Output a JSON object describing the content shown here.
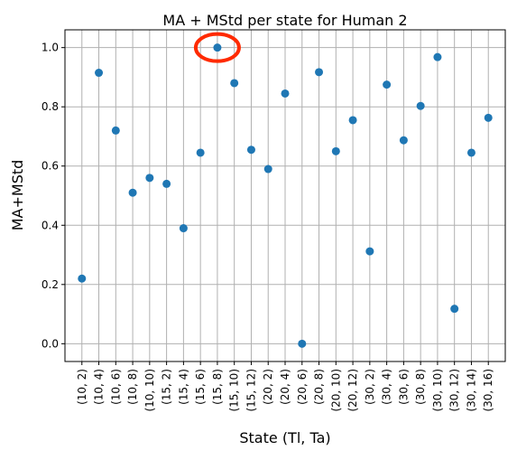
{
  "chart_data": {
    "type": "scatter",
    "title": "MA + MStd per state for Human 2",
    "xlabel": "State (Tl, Ta)",
    "ylabel": "MA+MStd",
    "categories": [
      "(10, 2)",
      "(10, 4)",
      "(10, 6)",
      "(10, 8)",
      "(10, 10)",
      "(15, 2)",
      "(15, 4)",
      "(15, 6)",
      "(15, 8)",
      "(15, 10)",
      "(15, 12)",
      "(20, 2)",
      "(20, 4)",
      "(20, 6)",
      "(20, 8)",
      "(20, 10)",
      "(20, 12)",
      "(30, 2)",
      "(30, 4)",
      "(30, 6)",
      "(30, 8)",
      "(30, 10)",
      "(30, 12)",
      "(30, 14)",
      "(30, 16)"
    ],
    "values": [
      0.22,
      0.915,
      0.72,
      0.51,
      0.56,
      0.54,
      0.39,
      0.645,
      1.0,
      0.88,
      0.655,
      0.59,
      0.845,
      0.0,
      0.917,
      0.65,
      0.755,
      0.312,
      0.875,
      0.687,
      0.803,
      0.968,
      0.118,
      0.645,
      0.763
    ],
    "ylim": [
      -0.06,
      1.06
    ],
    "yticks": [
      0.0,
      0.2,
      0.4,
      0.6,
      0.8,
      1.0
    ],
    "ytick_labels": [
      "0.0",
      "0.2",
      "0.4",
      "0.6",
      "0.8",
      "1.0"
    ],
    "grid": true,
    "highlight": {
      "category": "(15, 8)",
      "shape": "ellipse"
    },
    "colors": {
      "marker": "#1f77b4",
      "grid": "#b0b0b0",
      "highlight": "#ff2a00",
      "axes": "#000000"
    }
  }
}
